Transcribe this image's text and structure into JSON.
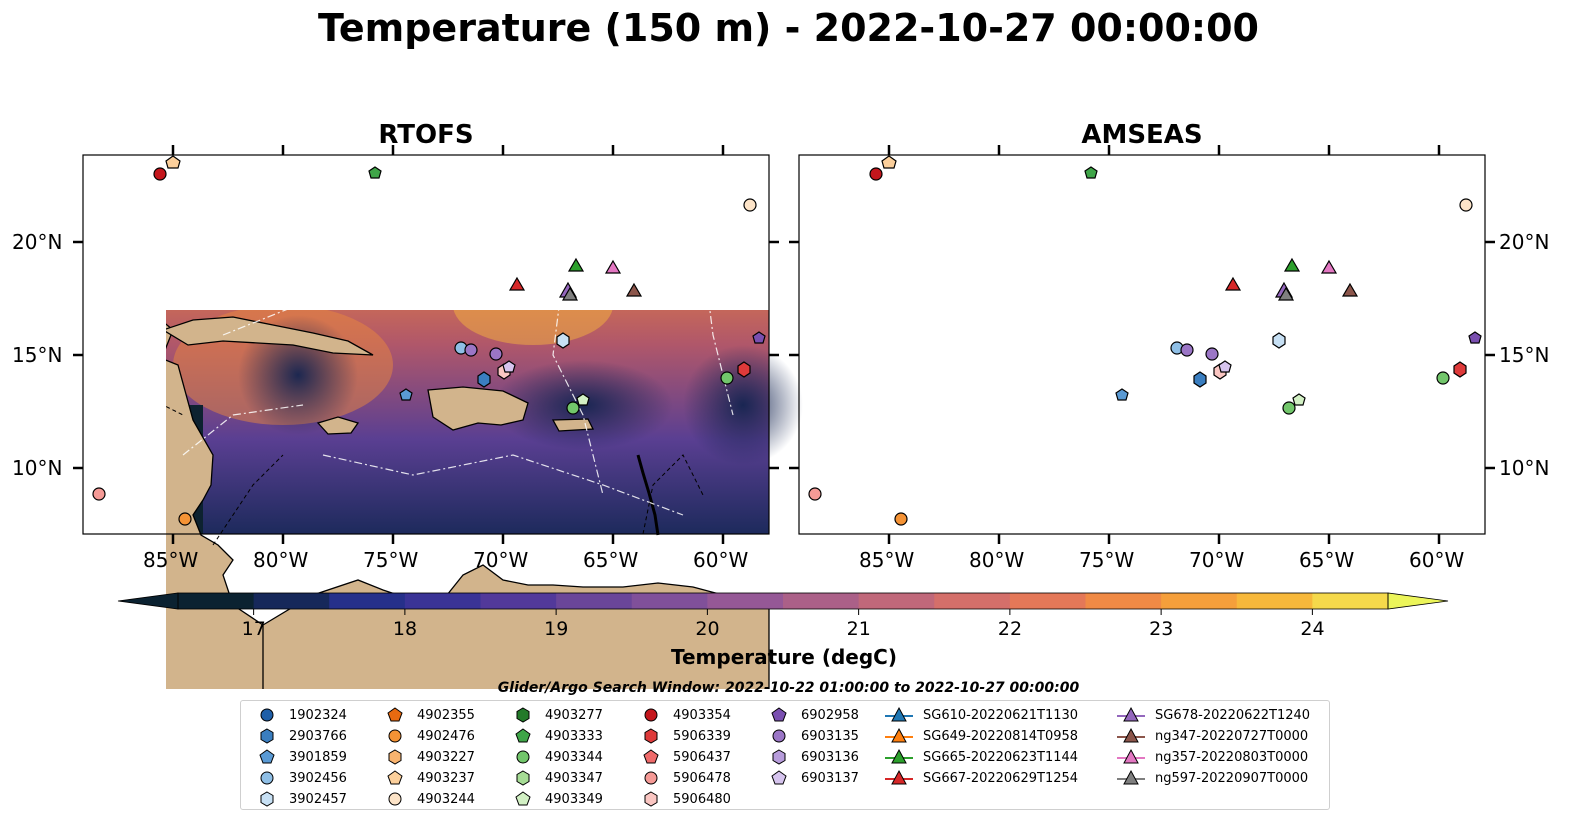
{
  "title": "Temperature (150 m) - 2022-10-27 00:00:00",
  "panels": [
    {
      "title": "RTOFS"
    },
    {
      "title": "AMSEAS"
    }
  ],
  "map": {
    "lon_ticks": [
      "85°W",
      "80°W",
      "75°W",
      "70°W",
      "65°W",
      "60°W"
    ],
    "lat_ticks": [
      "20°N",
      "15°N",
      "10°N"
    ]
  },
  "colorbar": {
    "label": "Temperature (degC)",
    "ticks": [
      "17",
      "18",
      "19",
      "20",
      "21",
      "22",
      "23",
      "24"
    ],
    "min": 16.5,
    "max": 24.5,
    "step": 0.5,
    "extend": "both"
  },
  "legend": {
    "title": "Glider/Argo Search Window: 2022-10-22 01:00:00 to 2022-10-27 00:00:00",
    "columns": [
      [
        {
          "label": "1902324",
          "marker": "circle",
          "color": "#1f5fa8"
        },
        {
          "label": "2903766",
          "marker": "hexagon",
          "color": "#3a7ec0"
        },
        {
          "label": "3901859",
          "marker": "pentagon",
          "color": "#5a9ad4"
        },
        {
          "label": "3902456",
          "marker": "circle",
          "color": "#8fbfe6"
        },
        {
          "label": "3902457",
          "marker": "hexagon",
          "color": "#c7e0f4"
        }
      ],
      [
        {
          "label": "4902355",
          "marker": "pentagon",
          "color": "#e86a10"
        },
        {
          "label": "4902476",
          "marker": "circle",
          "color": "#f59335"
        },
        {
          "label": "4903227",
          "marker": "hexagon",
          "color": "#f9b46f"
        },
        {
          "label": "4903237",
          "marker": "pentagon",
          "color": "#fbcf9b"
        },
        {
          "label": "4903244",
          "marker": "circle",
          "color": "#fde4c8"
        }
      ],
      [
        {
          "label": "4903277",
          "marker": "hexagon",
          "color": "#237a2a"
        },
        {
          "label": "4903333",
          "marker": "pentagon",
          "color": "#3fa548"
        },
        {
          "label": "4903344",
          "marker": "circle",
          "color": "#72c66b"
        },
        {
          "label": "4903347",
          "marker": "hexagon",
          "color": "#a6dc95"
        },
        {
          "label": "4903349",
          "marker": "pentagon",
          "color": "#d2f0c4"
        }
      ],
      [
        {
          "label": "4903354",
          "marker": "circle",
          "color": "#c4161c"
        },
        {
          "label": "5906339",
          "marker": "hexagon",
          "color": "#de3a3a"
        },
        {
          "label": "5906437",
          "marker": "pentagon",
          "color": "#ee6a6a"
        },
        {
          "label": "5906478",
          "marker": "circle",
          "color": "#f59a96"
        },
        {
          "label": "5906480",
          "marker": "hexagon",
          "color": "#fac6c2"
        }
      ],
      [
        {
          "label": "6902958",
          "marker": "pentagon",
          "color": "#7a4fb0"
        },
        {
          "label": "6903135",
          "marker": "circle",
          "color": "#9b76c6"
        },
        {
          "label": "6903136",
          "marker": "hexagon",
          "color": "#b79cdb"
        },
        {
          "label": "6903137",
          "marker": "pentagon",
          "color": "#d6c4ee"
        }
      ],
      [
        {
          "label": "SG610-20220621T1130",
          "marker": "triangle",
          "color": "#1f77b4"
        },
        {
          "label": "SG649-20220814T0958",
          "marker": "triangle",
          "color": "#ff7f0e"
        },
        {
          "label": "SG665-20220623T1144",
          "marker": "triangle",
          "color": "#2ca02c"
        },
        {
          "label": "SG667-20220629T1254",
          "marker": "triangle",
          "color": "#d62728"
        }
      ],
      [
        {
          "label": "SG678-20220622T1240",
          "marker": "triangle",
          "color": "#9467bd"
        },
        {
          "label": "ng347-20220727T0000",
          "marker": "triangle",
          "color": "#8c564b"
        },
        {
          "label": "ng357-20220803T0000",
          "marker": "triangle",
          "color": "#e377c2"
        },
        {
          "label": "ng597-20220907T0000",
          "marker": "triangle",
          "color": "#7f7f7f"
        }
      ]
    ]
  }
}
